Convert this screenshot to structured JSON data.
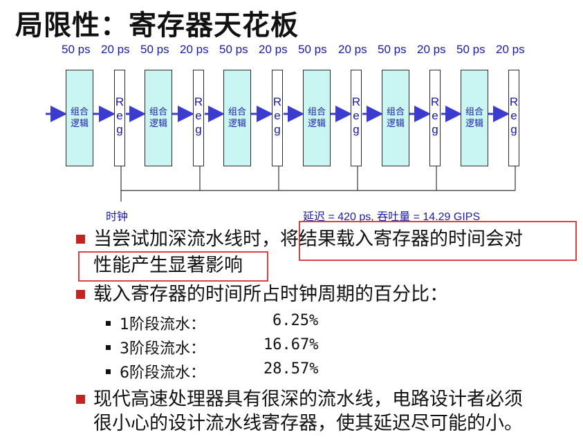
{
  "title": "局限性：寄存器天花板",
  "timing_labels": [
    "50 ps",
    "20 ps",
    "50 ps",
    "20 ps",
    "50 ps",
    "20 ps",
    "50 ps",
    "20 ps",
    "50 ps",
    "20 ps",
    "50 ps",
    "20 ps"
  ],
  "stage_label": [
    "组合",
    "逻辑"
  ],
  "reg_label": [
    "R",
    "e",
    "g"
  ],
  "clock_label": "时钟",
  "latency_text": "延迟 = 420 ps, 吞吐量 = 14.29 GIPS",
  "bullets": [
    {
      "lines": [
        "当尝试加深流水线时，将结果载入寄存器的时间会对",
        "性能产生显著影响"
      ]
    },
    {
      "lines": [
        "载入寄存器的时间所占时钟周期的百分比："
      ]
    },
    {
      "lines": [
        "现代高速处理器具有很深的流水线，电路设计者必须",
        "很小心的设计流水线寄存器，使其延迟尽可能的小。"
      ]
    }
  ],
  "sub_items": [
    {
      "label": "1阶段流水：",
      "value": "6.25%"
    },
    {
      "label": "3阶段流水：",
      "value": "16.67%"
    },
    {
      "label": "6阶段流水：",
      "value": "28.57%"
    }
  ],
  "colors": {
    "stage_fill": "#c9f5f3",
    "arrow": "#3b3bd0",
    "label_blue": "#1a1aa6",
    "bullet_red": "#c0261f",
    "highlight_red": "#e0403e"
  }
}
